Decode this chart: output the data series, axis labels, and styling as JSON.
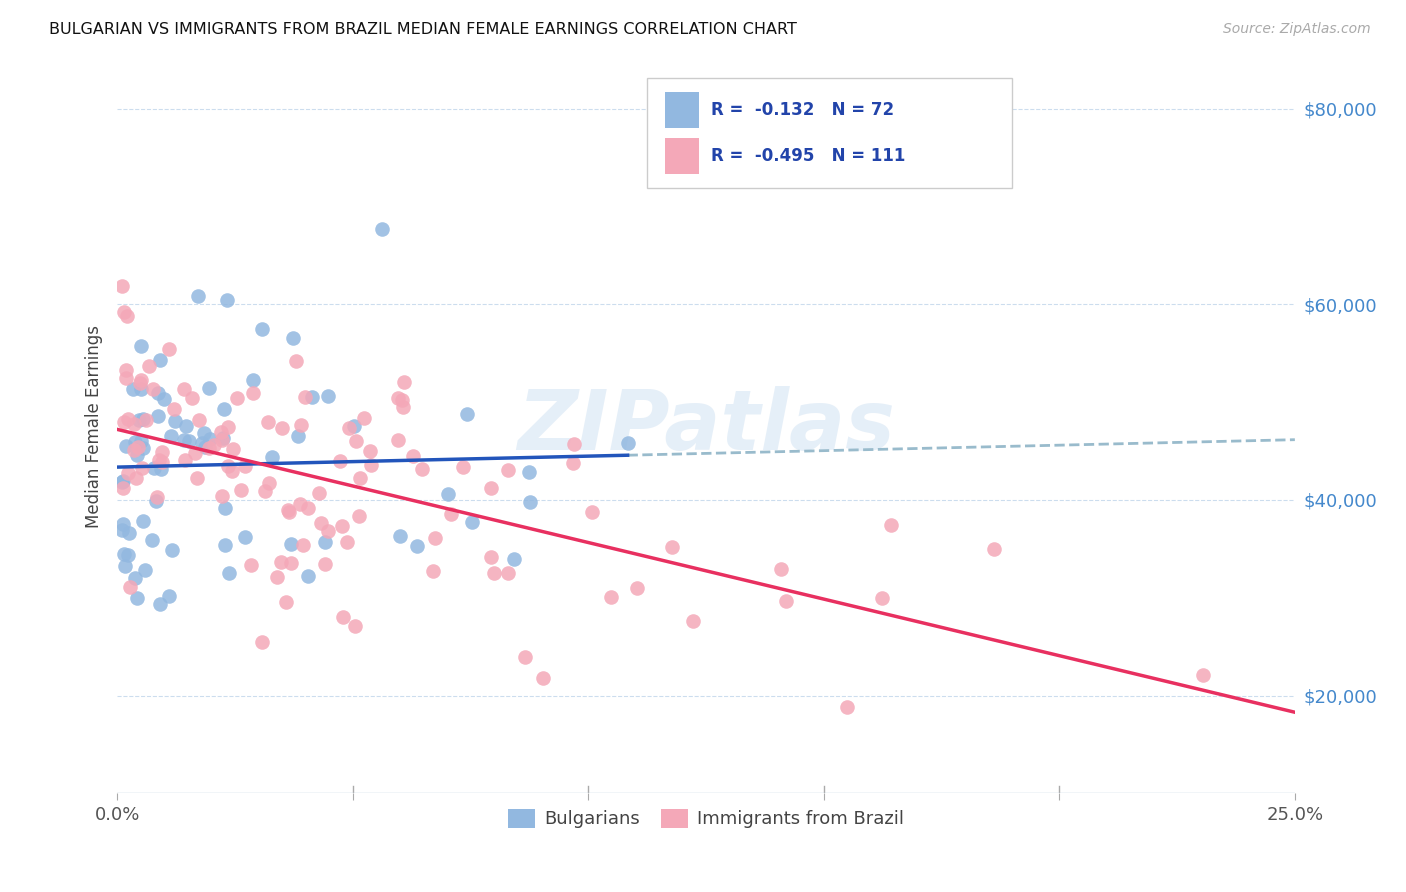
{
  "title": "BULGARIAN VS IMMIGRANTS FROM BRAZIL MEDIAN FEMALE EARNINGS CORRELATION CHART",
  "source": "Source: ZipAtlas.com",
  "ylabel": "Median Female Earnings",
  "yticks": [
    20000,
    40000,
    60000,
    80000
  ],
  "ytick_labels": [
    "$20,000",
    "$40,000",
    "$60,000",
    "$80,000"
  ],
  "ylim": [
    10000,
    85000
  ],
  "xlim": [
    0.0,
    0.25
  ],
  "bg_color": "#ffffff",
  "legend_R_blue": "-0.132",
  "legend_N_blue": "72",
  "legend_R_pink": "-0.495",
  "legend_N_pink": "111",
  "blue_color": "#92b8e0",
  "pink_color": "#f4a8b8",
  "trend_blue_color": "#2255bb",
  "trend_pink_color": "#e83060",
  "trend_dashed_color": "#99bbcc",
  "label_bulgarians": "Bulgarians",
  "label_brazil": "Immigrants from Brazil",
  "tick_color_y": "#4488cc",
  "tick_color_x": "#555555",
  "watermark_color": "#c0d8ee",
  "watermark_alpha": 0.4
}
